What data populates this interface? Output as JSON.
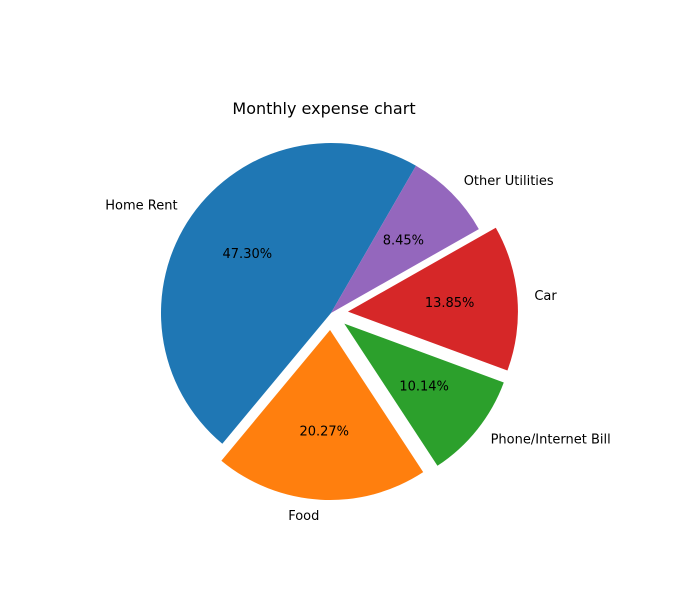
{
  "chart_data": {
    "type": "pie",
    "title": "Monthly expense chart",
    "autopct_format": "percent-2dp",
    "start_angle_deg": 60,
    "direction": "counterclockwise",
    "slices": [
      {
        "label": "Home Rent",
        "percent": 47.3,
        "color": "#1f77b4",
        "exploded": false
      },
      {
        "label": "Food",
        "percent": 20.27,
        "color": "#ff7f0e",
        "exploded": true
      },
      {
        "label": "Phone/Internet Bill",
        "percent": 10.14,
        "color": "#2ca02c",
        "exploded": true
      },
      {
        "label": "Car",
        "percent": 13.85,
        "color": "#d62728",
        "exploded": true
      },
      {
        "label": "Other Utilities",
        "percent": 8.45,
        "color": "#9467bd",
        "exploded": false
      }
    ]
  }
}
